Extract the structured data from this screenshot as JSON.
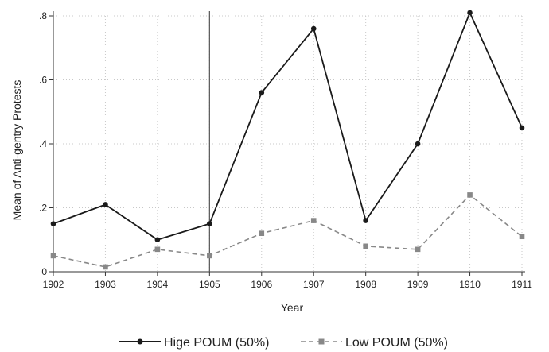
{
  "chart_data": {
    "type": "line",
    "xlabel": "Year",
    "ylabel": "Mean of Anti-gentry Protests",
    "x": [
      1902,
      1903,
      1904,
      1905,
      1906,
      1907,
      1908,
      1909,
      1910,
      1911
    ],
    "x_tick_labels": [
      "1902",
      "1903",
      "1904",
      "1905",
      "1906",
      "1907",
      "1908",
      "1909",
      "1910",
      "1911"
    ],
    "ylim": [
      0,
      0.8
    ],
    "y_ticks": [
      0,
      0.2,
      0.4,
      0.6,
      0.8
    ],
    "y_tick_labels": [
      "0",
      ".2",
      ".4",
      ".6",
      ".8"
    ],
    "vertical_reference_line_x": 1905,
    "grid": true,
    "legend_position": "bottom",
    "series": [
      {
        "name": "Hige POUM (50%)",
        "values": [
          0.15,
          0.21,
          0.1,
          0.15,
          0.56,
          0.76,
          0.16,
          0.4,
          0.81,
          0.45
        ],
        "color": "#1a1a1a",
        "line_style": "solid",
        "marker": "circle"
      },
      {
        "name": "Low POUM (50%)",
        "values": [
          0.05,
          0.015,
          0.07,
          0.05,
          0.12,
          0.16,
          0.08,
          0.07,
          0.24,
          0.11
        ],
        "color": "#888888",
        "line_style": "dashed",
        "marker": "square"
      }
    ]
  }
}
